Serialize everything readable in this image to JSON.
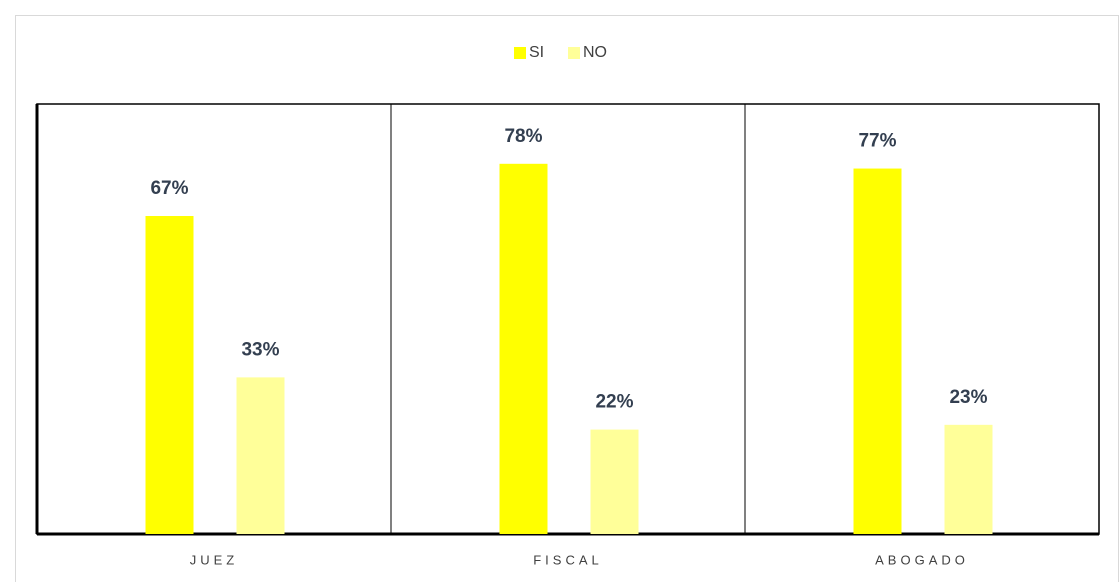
{
  "chart_data": {
    "type": "bar",
    "categories": [
      "JUEZ",
      "FISCAL",
      "ABOGADO"
    ],
    "series": [
      {
        "name": "SI",
        "color": "#ffff00",
        "values": [
          67,
          78,
          77
        ],
        "value_labels": [
          "67%",
          "78%",
          "77%"
        ]
      },
      {
        "name": "NO",
        "color": "#ffff99",
        "values": [
          33,
          22,
          23
        ],
        "value_labels": [
          "33%",
          "22%",
          "23%"
        ]
      }
    ],
    "ylim": [
      0,
      90.6
    ],
    "legend": "top"
  }
}
